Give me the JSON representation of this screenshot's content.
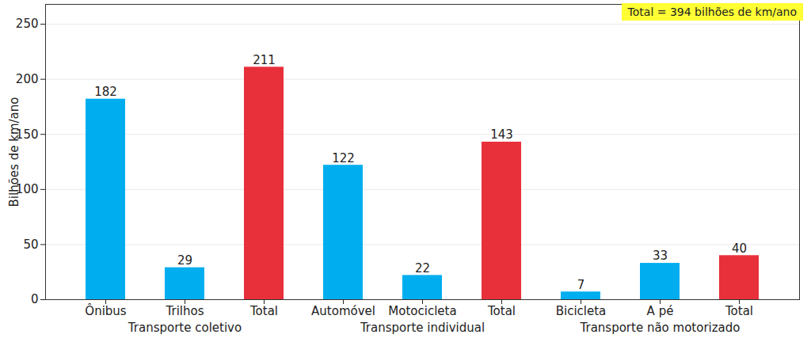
{
  "chart_data": {
    "type": "bar",
    "annotation": "Total = 394 bilhões de km/ano",
    "y_label": "Bilhões de km/ano",
    "categories": [
      "Ônibus",
      "Trilhos",
      "Total",
      "Automóvel",
      "Motocicleta",
      "Total",
      "Bicicleta",
      "A pé",
      "Total"
    ],
    "group": [
      "Transporte coletivo",
      "Transporte coletivo",
      "Transporte coletivo",
      "Transporte individual",
      "Transporte individual",
      "Transporte individual",
      "Transporte não motorizado",
      "Transporte não motorizado",
      "Transporte não motorizado"
    ],
    "values": [
      182,
      29,
      211,
      122,
      22,
      143,
      7,
      33,
      40
    ],
    "colors": [
      "#00aeef",
      "#00aeef",
      "#e8303a",
      "#00aeef",
      "#00aeef",
      "#e8303a",
      "#00aeef",
      "#00aeef",
      "#e8303a"
    ],
    "ylim": [
      0,
      268
    ],
    "yticks": [
      0,
      50,
      100,
      150,
      200,
      250
    ],
    "grid": true,
    "data_labels": true
  }
}
